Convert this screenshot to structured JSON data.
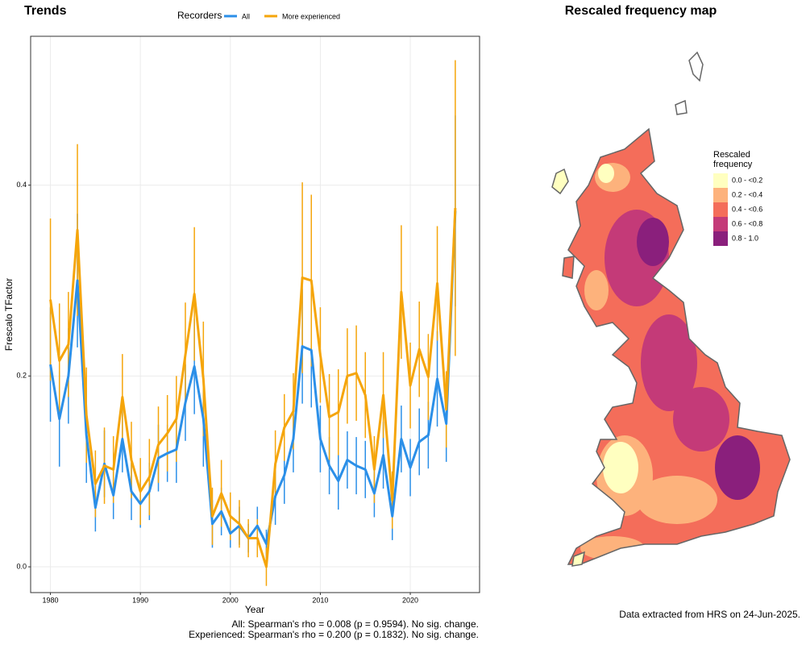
{
  "chart_data": [
    {
      "type": "line",
      "title": "Trends",
      "legend_title": "Recorders",
      "legend": "top",
      "xlabel": "Year",
      "ylabel": "Frescalo TFactor",
      "x": [
        1980,
        1981,
        1982,
        1983,
        1984,
        1985,
        1986,
        1987,
        1988,
        1989,
        1990,
        1991,
        1992,
        1993,
        1994,
        1995,
        1996,
        1997,
        1998,
        1999,
        2000,
        2001,
        2002,
        2003,
        2004,
        2005,
        2006,
        2007,
        2008,
        2009,
        2010,
        2011,
        2012,
        2013,
        2014,
        2015,
        2016,
        2017,
        2018,
        2019,
        2020,
        2021,
        2022,
        2023,
        2024,
        2025
      ],
      "series": [
        {
          "name": "All",
          "color": "#2b8fe8",
          "values": [
            0.212,
            0.155,
            0.2,
            0.3,
            0.138,
            0.062,
            0.108,
            0.075,
            0.134,
            0.079,
            0.066,
            0.079,
            0.114,
            0.119,
            0.123,
            0.172,
            0.21,
            0.155,
            0.045,
            0.058,
            0.035,
            0.043,
            0.03,
            0.043,
            0.024,
            0.074,
            0.096,
            0.134,
            0.231,
            0.227,
            0.134,
            0.106,
            0.09,
            0.112,
            0.106,
            0.102,
            0.077,
            0.117,
            0.053,
            0.134,
            0.104,
            0.131,
            0.138,
            0.197,
            0.15,
            0.373
          ],
          "errors": [
            0.06,
            0.05,
            0.05,
            0.07,
            0.05,
            0.025,
            0.035,
            0.025,
            0.035,
            0.03,
            0.025,
            0.03,
            0.035,
            0.03,
            0.035,
            0.04,
            0.05,
            0.05,
            0.025,
            0.025,
            0.015,
            0.02,
            0.015,
            0.02,
            0.015,
            0.03,
            0.03,
            0.035,
            0.06,
            0.06,
            0.035,
            0.03,
            0.03,
            0.03,
            0.03,
            0.03,
            0.025,
            0.035,
            0.025,
            0.035,
            0.03,
            0.035,
            0.035,
            0.05,
            0.04,
            0.1
          ]
        },
        {
          "name": "More experienced",
          "color": "#f5a50a",
          "values": [
            0.28,
            0.216,
            0.233,
            0.353,
            0.159,
            0.087,
            0.106,
            0.102,
            0.178,
            0.112,
            0.079,
            0.094,
            0.128,
            0.14,
            0.155,
            0.222,
            0.286,
            0.197,
            0.053,
            0.077,
            0.053,
            0.045,
            0.03,
            0.03,
            0,
            0.108,
            0.146,
            0.163,
            0.303,
            0.3,
            0.222,
            0.157,
            0.162,
            0.2,
            0.203,
            0.18,
            0.102,
            0.18,
            0.07,
            0.288,
            0.19,
            0.228,
            0.199,
            0.297,
            0.165,
            0.376
          ],
          "errors": [
            0.085,
            0.06,
            0.055,
            0.09,
            0.05,
            0.035,
            0.04,
            0.035,
            0.045,
            0.04,
            0.035,
            0.04,
            0.04,
            0.04,
            0.045,
            0.055,
            0.07,
            0.06,
            0.03,
            0.035,
            0.025,
            0.025,
            0.02,
            0.02,
            0.02,
            0.035,
            0.035,
            0.04,
            0.1,
            0.09,
            0.05,
            0.045,
            0.045,
            0.05,
            0.05,
            0.045,
            0.035,
            0.045,
            0.03,
            0.07,
            0.045,
            0.05,
            0.045,
            0.06,
            0.04,
            0.155
          ]
        }
      ],
      "xlim": [
        1977.8,
        2027.7
      ],
      "xticks": [
        1980,
        1990,
        2000,
        2010,
        2020
      ],
      "ylim": [
        -0.027,
        0.556
      ],
      "yticks": [
        {
          "value": 0,
          "label": "0.0"
        },
        0.2,
        0.4
      ],
      "grid": true,
      "annotations": [
        "All: Spearman's rho = 0.008 (p = 0.9594). No sig. change.",
        "Experienced: Spearman's rho = 0.200 (p = 0.1832). No sig. change."
      ]
    },
    {
      "type": "map",
      "title": "Rescaled frequency map",
      "legend_title": "Rescaled frequency",
      "categories": [
        "0.0 - <0.2",
        "0.2 - <0.4",
        "0.4 - <0.6",
        "0.6 - <0.8",
        "0.8 - 1.0"
      ],
      "colors": [
        "#ffffc0",
        "#fdb27c",
        "#f46d5a",
        "#c43a78",
        "#8a1f7c"
      ],
      "caption": "Data extracted from HRS on 24-Jun-2025."
    }
  ]
}
